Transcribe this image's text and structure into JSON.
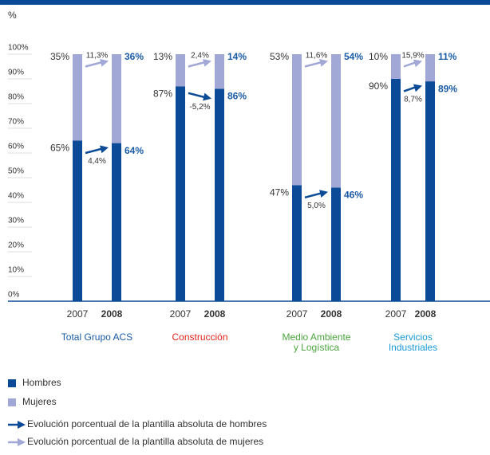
{
  "chart_data": {
    "type": "stacked_bar",
    "unit_label": "%",
    "categories": [
      "2007",
      "2008",
      "2007",
      "2008",
      "2007",
      "2008",
      "2007",
      "2008"
    ],
    "groups": [
      {
        "label": [
          "Total Grupo ACS"
        ],
        "color": "#1a5ba6"
      },
      {
        "label": [
          "Construcción"
        ],
        "color": "#e2231a"
      },
      {
        "label": [
          "Medio Ambiente",
          "y Logística"
        ],
        "color": "#4aa63c"
      },
      {
        "label": [
          "Servicios",
          "Industriales"
        ],
        "color": "#1a9ad6"
      }
    ],
    "series": [
      {
        "name": "Hombres",
        "color": "#0b4a97",
        "values": [
          65,
          64,
          87,
          86,
          47,
          46,
          90,
          89
        ],
        "value_labels": [
          "65%",
          "64%",
          "87%",
          "86%",
          "47%",
          "46%",
          "90%",
          "89%"
        ]
      },
      {
        "name": "Mujeres",
        "color": "#a1a8d6",
        "values": [
          35,
          36,
          13,
          14,
          53,
          54,
          10,
          11
        ],
        "value_labels": [
          "35%",
          "36%",
          "13%",
          "14%",
          "53%",
          "54%",
          "10%",
          "11%"
        ]
      }
    ],
    "evolution": [
      {
        "name": "Evolución porcentual de la plantilla absoluta de hombres",
        "color": "#0b4a97",
        "values": [
          4.4,
          -5.2,
          5.0,
          8.7
        ],
        "value_labels": [
          "4,4%",
          "-5,2%",
          "5,0%",
          "8,7%"
        ]
      },
      {
        "name": "Evolución porcentual de la plantilla absoluta de mujeres",
        "color": "#a1a8d6",
        "values": [
          11.3,
          2.4,
          11.6,
          15.9
        ],
        "value_labels": [
          "11,3%",
          "2,4%",
          "11,6%",
          "15,9%"
        ]
      }
    ],
    "ylim": [
      0,
      100
    ],
    "yticks": [
      {
        "value": 0,
        "label": "0%"
      },
      {
        "value": 10,
        "label": "10%"
      },
      {
        "value": 20,
        "label": "20%"
      },
      {
        "value": 30,
        "label": "30%"
      },
      {
        "value": 40,
        "label": "40%"
      },
      {
        "value": 50,
        "label": "50%"
      },
      {
        "value": 60,
        "label": "60%"
      },
      {
        "value": 70,
        "label": "70%"
      },
      {
        "value": 80,
        "label": "80%"
      },
      {
        "value": 90,
        "label": "90%"
      },
      {
        "value": 100,
        "label": "100%"
      }
    ]
  }
}
